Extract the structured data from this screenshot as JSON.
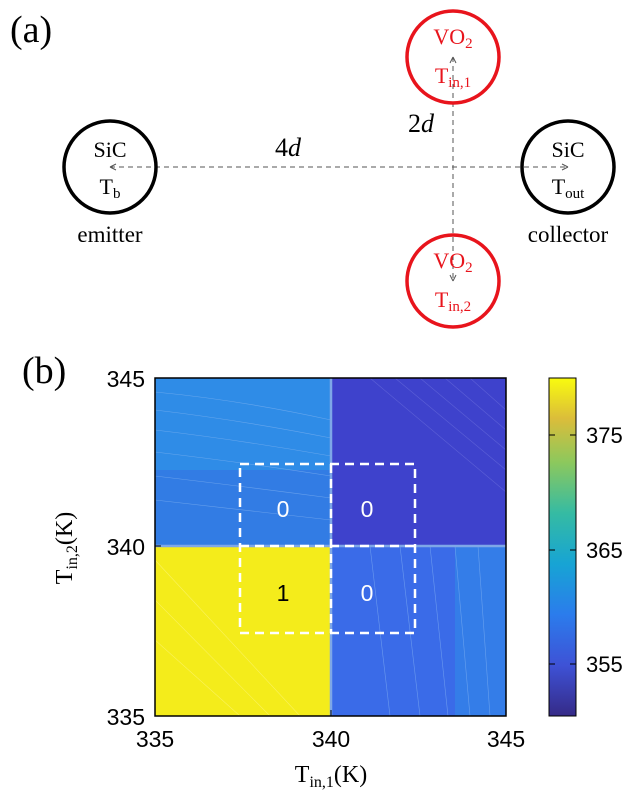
{
  "panel_a": {
    "label": "(a)",
    "emitter": {
      "material": "SiC",
      "temp_main": "T",
      "temp_sub": "b",
      "role": "emitter"
    },
    "collector": {
      "material": "SiC",
      "temp_main": "T",
      "temp_sub": "out",
      "role": "collector"
    },
    "insulator_top": {
      "mat_main": "VO",
      "mat_sub": "2",
      "temp_main": "T",
      "temp_sub": "in,1"
    },
    "insulator_bottom": {
      "mat_main": "VO",
      "mat_sub": "2",
      "temp_main": "T",
      "temp_sub": "in,2"
    },
    "distance_horizontal": {
      "coef": "4",
      "var": "d"
    },
    "distance_vertical": {
      "coef": "2",
      "var": "d"
    },
    "colors": {
      "sic": "#000000",
      "vo2": "#e8141c",
      "dashed": "#555555"
    }
  },
  "panel_b": {
    "label": "(b)",
    "xlabel": {
      "main": "T",
      "sub": "in,1",
      "unit": "(K)"
    },
    "ylabel": {
      "main": "T",
      "sub": "in,2",
      "unit": "(K)"
    },
    "xticks": [
      "335",
      "340",
      "345"
    ],
    "yticks": [
      "345",
      "340",
      "335"
    ],
    "colorbar_ticks": [
      "375",
      "365",
      "355"
    ],
    "logic_labels": {
      "top_left": "0",
      "top_right": "0",
      "bottom_left": "1",
      "bottom_right": "0"
    }
  },
  "chart_data": {
    "type": "heatmap",
    "xlabel": "T_in,1 (K)",
    "ylabel": "T_in,2 (K)",
    "xlim": [
      335,
      345
    ],
    "ylim": [
      335,
      345
    ],
    "colorbar_range": [
      350,
      380
    ],
    "colorbar_ticks": [
      355,
      365,
      375
    ],
    "colormap": "parula",
    "regions": [
      {
        "x": [
          335,
          340
        ],
        "y": [
          340,
          345
        ],
        "value": 358,
        "logic": "0",
        "color": "#2e8de6"
      },
      {
        "x": [
          340,
          345
        ],
        "y": [
          340,
          345
        ],
        "value": 353,
        "logic": "0",
        "color": "#3d3fca"
      },
      {
        "x": [
          335,
          340
        ],
        "y": [
          335,
          340
        ],
        "value": 379,
        "logic": "1",
        "color": "#f3eb1a"
      },
      {
        "x": [
          340,
          345
        ],
        "y": [
          335,
          340
        ],
        "value": 357,
        "logic": "0",
        "color": "#3670e8"
      }
    ],
    "dashed_box": {
      "x": [
        337.5,
        342.5
      ],
      "y": [
        337.5,
        342.5
      ]
    }
  }
}
